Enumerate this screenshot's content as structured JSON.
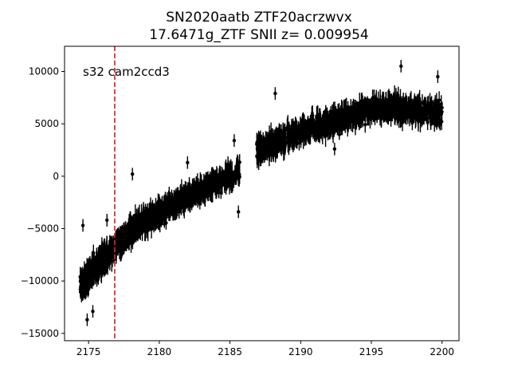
{
  "chart_data": {
    "type": "scatter",
    "title_line1": "SN2020aatb  ZTF20acrzwvx",
    "title_line2": "17.6471g_ZTF SNII z= 0.009954",
    "annotation": "s32 cam2ccd3",
    "xlim": [
      2173.3,
      2201.2
    ],
    "ylim": [
      -15700,
      12400
    ],
    "x_ticks": [
      2175,
      2180,
      2185,
      2190,
      2195,
      2200
    ],
    "y_ticks": [
      -15000,
      -10000,
      -5000,
      0,
      5000,
      10000
    ],
    "x_tick_labels": [
      "2175",
      "2180",
      "2185",
      "2190",
      "2195",
      "2200"
    ],
    "y_tick_labels": [
      "−15000",
      "−10000",
      "−5000",
      "0",
      "5000",
      "10000"
    ],
    "vline_x": 2176.85,
    "vline_color": "#d62728",
    "marker_color": "#000000",
    "grid": false,
    "segments": [
      {
        "x_start": 2174.4,
        "x_end": 2176.0,
        "y_start": -10500,
        "y_end": -8000,
        "scatter": 1300,
        "n": 260
      },
      {
        "x_start": 2176.0,
        "x_end": 2178.5,
        "y_start": -8000,
        "y_end": -4600,
        "scatter": 1100,
        "n": 320
      },
      {
        "x_start": 2178.5,
        "x_end": 2181.5,
        "y_start": -4600,
        "y_end": -2300,
        "scatter": 1100,
        "n": 330
      },
      {
        "x_start": 2181.5,
        "x_end": 2185.7,
        "y_start": -2300,
        "y_end": 500,
        "scatter": 1000,
        "n": 360
      },
      {
        "x_start": 2186.9,
        "x_end": 2190.5,
        "y_start": 2500,
        "y_end": 4500,
        "scatter": 1100,
        "n": 340
      },
      {
        "x_start": 2190.5,
        "x_end": 2195.5,
        "y_start": 4500,
        "y_end": 6600,
        "scatter": 1100,
        "n": 420
      },
      {
        "x_start": 2195.5,
        "x_end": 2200.0,
        "y_start": 6600,
        "y_end": 6000,
        "scatter": 1100,
        "n": 380
      }
    ],
    "outliers": [
      {
        "x": 2174.6,
        "y": -4700
      },
      {
        "x": 2174.9,
        "y": -13700
      },
      {
        "x": 2175.3,
        "y": -12900
      },
      {
        "x": 2176.3,
        "y": -4200
      },
      {
        "x": 2178.1,
        "y": 200
      },
      {
        "x": 2182.0,
        "y": 1300
      },
      {
        "x": 2185.6,
        "y": -3400
      },
      {
        "x": 2188.2,
        "y": 7900
      },
      {
        "x": 2197.1,
        "y": 10500
      },
      {
        "x": 2199.7,
        "y": 9500
      },
      {
        "x": 2192.4,
        "y": 2600
      },
      {
        "x": 2185.3,
        "y": 3400
      }
    ]
  }
}
